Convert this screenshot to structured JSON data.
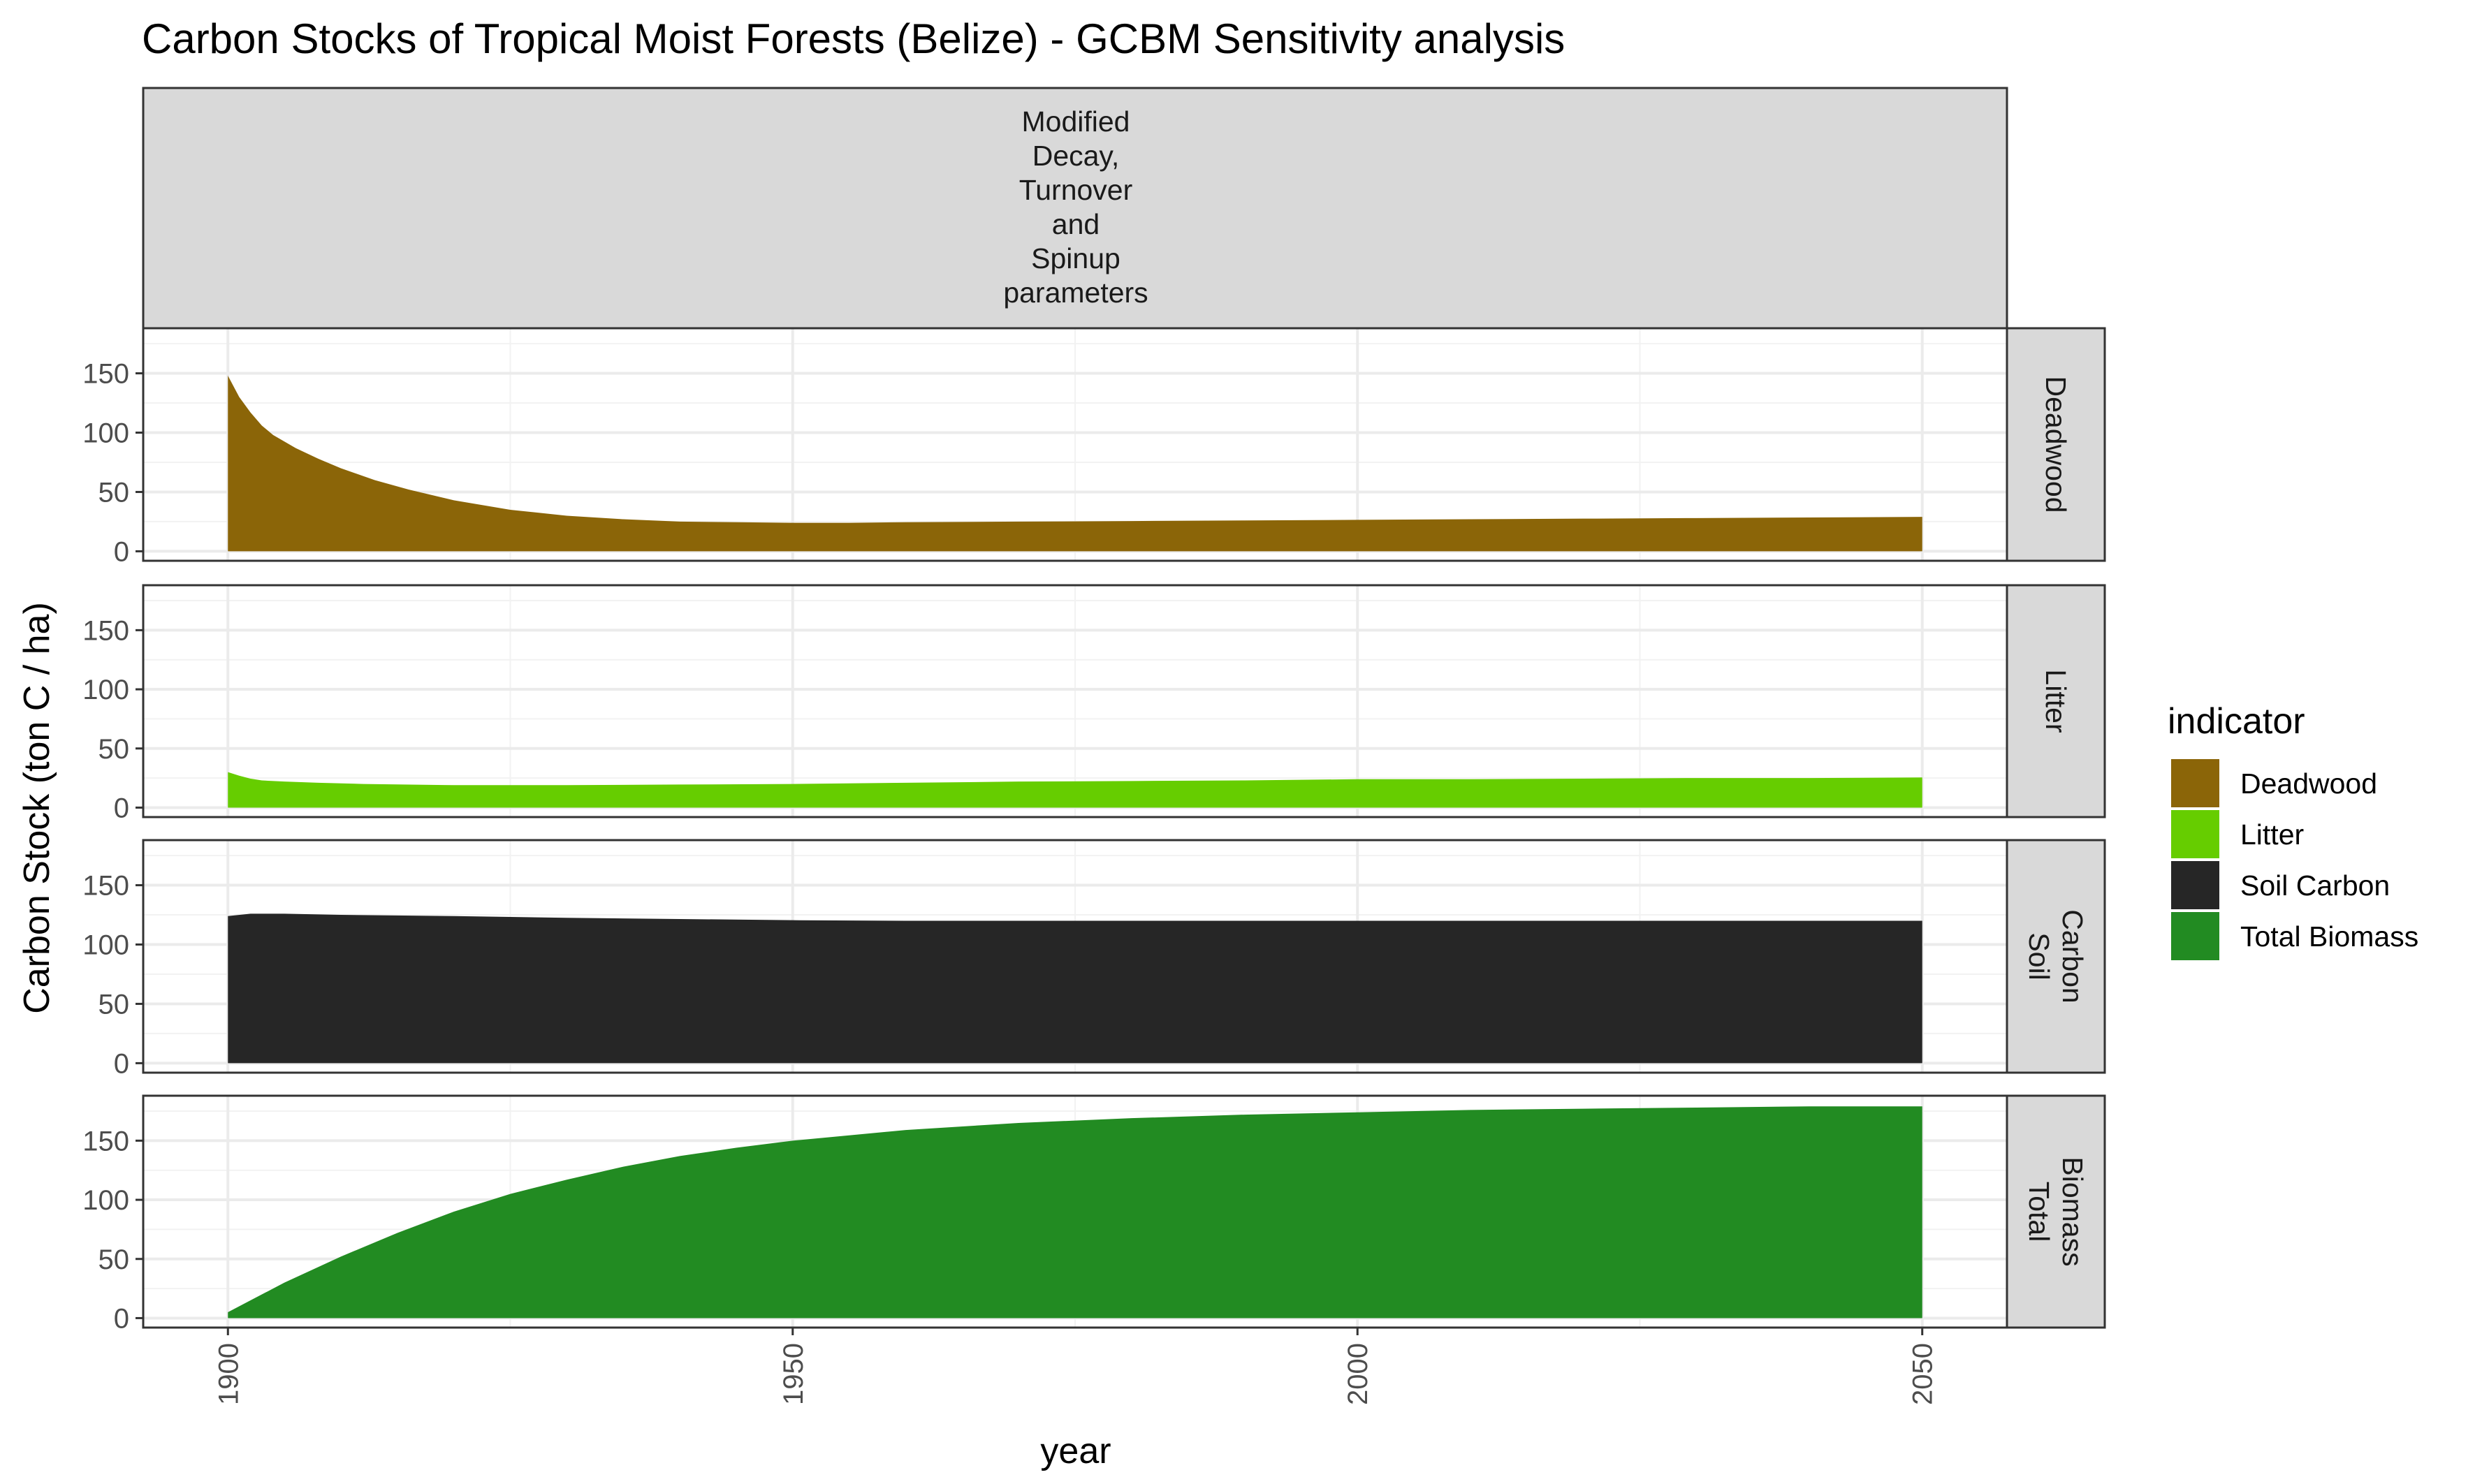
{
  "chart_data": {
    "type": "area",
    "title": "Carbon Stocks of Tropical Moist Forests (Belize) - GCBM Sensitivity analysis",
    "column_facet": [
      "Modified",
      "Decay,",
      "Turnover",
      "and",
      "Spinup",
      "parameters"
    ],
    "xlabel": "year",
    "ylabel": "Carbon Stock (ton C / ha)",
    "xlim": [
      1892.5,
      2057.5
    ],
    "ylim": [
      -8,
      188
    ],
    "x_ticks": [
      "1900",
      "1950",
      "2000",
      "2050"
    ],
    "y_ticks": [
      "0",
      "50",
      "100",
      "150"
    ],
    "grid": true,
    "legend": {
      "title": "indicator",
      "position": "right",
      "entries": [
        "Deadwood",
        "Litter",
        "Soil Carbon",
        "Total Biomass"
      ]
    },
    "series": [
      {
        "name": "Deadwood",
        "strip": [
          "Deadwood"
        ],
        "color": "#8B6508",
        "x": [
          1900,
          1901,
          1902,
          1903,
          1904,
          1906,
          1908,
          1910,
          1913,
          1916,
          1920,
          1925,
          1930,
          1935,
          1940,
          1945,
          1950,
          1955,
          1960,
          1970,
          1980,
          1990,
          2000,
          2010,
          2020,
          2030,
          2040,
          2050
        ],
        "values": [
          148,
          130,
          117,
          106,
          98,
          87,
          78,
          70,
          60,
          52,
          43,
          35,
          30,
          27,
          25,
          24.5,
          24,
          24,
          24.5,
          25,
          25.5,
          26,
          26.5,
          27,
          27.5,
          28,
          28.5,
          29
        ]
      },
      {
        "name": "Litter",
        "strip": [
          "Litter"
        ],
        "color": "#66CD00",
        "x": [
          1900,
          1901,
          1902,
          1903,
          1905,
          1908,
          1912,
          1920,
          1930,
          1940,
          1950,
          1960,
          1970,
          1980,
          1990,
          2000,
          2010,
          2020,
          2030,
          2040,
          2050
        ],
        "values": [
          30,
          27,
          24.5,
          23,
          22,
          21,
          20,
          19,
          19,
          19.5,
          20,
          21,
          22,
          22.5,
          23,
          24,
          24,
          24.5,
          25,
          25,
          25.5
        ]
      },
      {
        "name": "Soil Carbon",
        "strip": [
          "Soil",
          "Carbon"
        ],
        "color": "#262626",
        "x": [
          1900,
          1902,
          1905,
          1910,
          1920,
          1930,
          1940,
          1950,
          1960,
          1970,
          1980,
          1990,
          2000,
          2010,
          2020,
          2030,
          2040,
          2050
        ],
        "values": [
          124,
          126,
          126,
          125,
          124,
          122.5,
          121.5,
          120.5,
          120,
          120,
          120,
          120,
          120,
          120,
          120,
          120,
          120,
          120
        ]
      },
      {
        "name": "Total Biomass",
        "strip": [
          "Total",
          "Biomass"
        ],
        "color": "#228B22",
        "x": [
          1900,
          1902,
          1905,
          1910,
          1915,
          1920,
          1925,
          1930,
          1935,
          1940,
          1945,
          1950,
          1960,
          1970,
          1980,
          1990,
          2000,
          2010,
          2020,
          2030,
          2040,
          2050
        ],
        "values": [
          5,
          15,
          30,
          52,
          72,
          90,
          105,
          117,
          128,
          137,
          144,
          150,
          159,
          165,
          169,
          172,
          174,
          176,
          177,
          178,
          179,
          179
        ]
      }
    ]
  }
}
